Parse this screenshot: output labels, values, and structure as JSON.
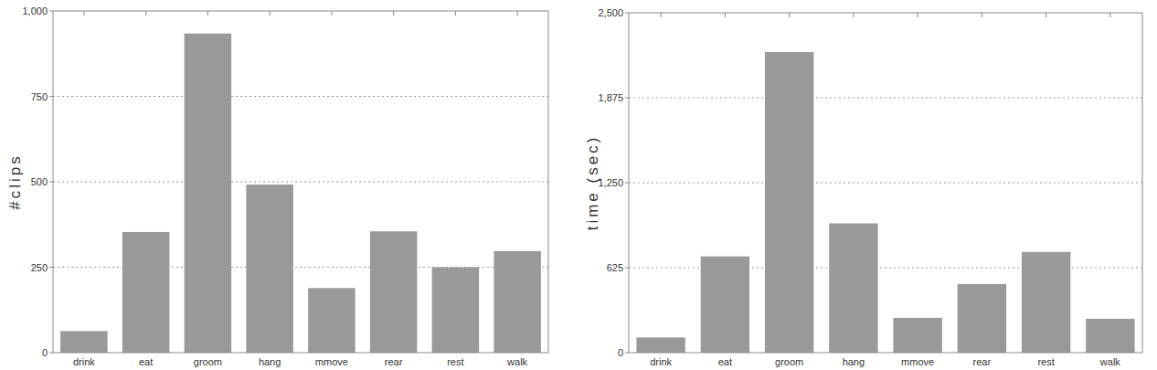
{
  "chart_data": [
    {
      "type": "bar",
      "y_label": "#clips",
      "categories": [
        "drink",
        "eat",
        "groom",
        "hang",
        "mmove",
        "rear",
        "rest",
        "walk"
      ],
      "values": [
        63,
        353,
        934,
        492,
        189,
        355,
        250,
        297
      ],
      "color": "#999999",
      "ylim": [
        0,
        1000
      ],
      "yticks": [
        0,
        250,
        500,
        750,
        {
          "value": 1000,
          "label": "1,000"
        }
      ],
      "grid": true
    },
    {
      "type": "bar",
      "y_label": "time (sec)",
      "categories": [
        "drink",
        "eat",
        "groom",
        "hang",
        "mmove",
        "rear",
        "rest",
        "walk"
      ],
      "values": [
        112,
        708,
        2211,
        951,
        256,
        505,
        741,
        249
      ],
      "color": "#999999",
      "ylim": [
        0,
        2500
      ],
      "yticks": [
        0,
        625,
        {
          "value": 1250,
          "label": "1,250"
        },
        {
          "value": 1875,
          "label": "1,875"
        },
        {
          "value": 2500,
          "label": "2,500"
        }
      ],
      "grid": true
    }
  ]
}
